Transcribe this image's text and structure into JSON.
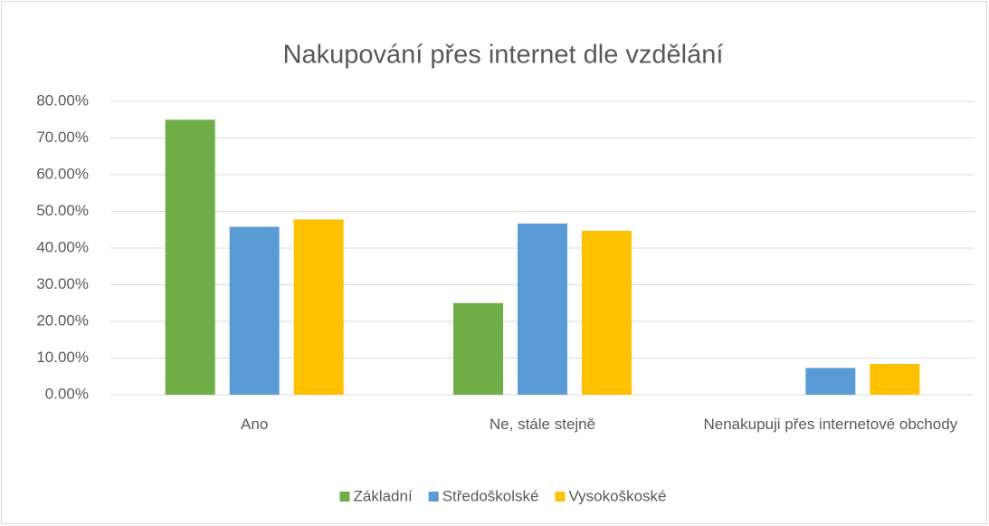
{
  "chart_data": {
    "type": "bar",
    "title": "Nakupování přes internet dle vzdělání",
    "categories": [
      "Ano",
      "Ne, stále stejně",
      "Nenakupuji přes internetové obchody"
    ],
    "series": [
      {
        "name": "Základní",
        "color": "#70ad47",
        "values": [
          75,
          25,
          0
        ]
      },
      {
        "name": "Středoškolské",
        "color": "#5b9bd5",
        "values": [
          45.8,
          46.7,
          7.3
        ]
      },
      {
        "name": "Vysokoškoské",
        "color": "#ffc000",
        "values": [
          47.8,
          44.7,
          8.4
        ]
      }
    ],
    "ylim": [
      0,
      80
    ],
    "yticks": [
      {
        "value": 0,
        "label": "0.00%"
      },
      {
        "value": 10,
        "label": "10.00%"
      },
      {
        "value": 20,
        "label": "20.00%"
      },
      {
        "value": 30,
        "label": "30.00%"
      },
      {
        "value": 40,
        "label": "40.00%"
      },
      {
        "value": 50,
        "label": "50.00%"
      },
      {
        "value": 60,
        "label": "60.00%"
      },
      {
        "value": 70,
        "label": "70.00%"
      },
      {
        "value": 80,
        "label": "80.00%"
      }
    ],
    "grid": true,
    "legend": "bottom"
  }
}
